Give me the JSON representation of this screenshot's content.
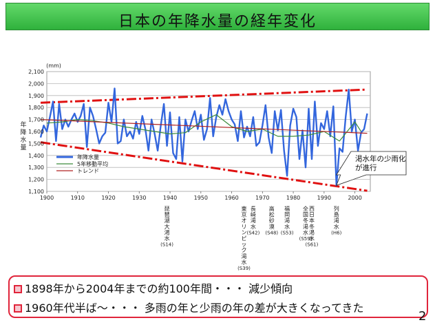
{
  "title": "日本の年降水量の経年変化",
  "notes": [
    "1898年から2004年までの約100年間・・・ 減少傾向",
    "1960年代半ば～・・・ 多雨の年と少雨の年の差が大きくなってきた"
  ],
  "page_number": "2",
  "colors": {
    "annual": "#3366dd",
    "moving_avg": "#3a8a3a",
    "trend": "#b02020",
    "envelope": "#e01010",
    "note_border": "#e0243a"
  },
  "chart_data": {
    "type": "line",
    "ylabel": "年降水量",
    "yunit": "(mm)",
    "xlim": [
      1900,
      2005
    ],
    "ylim": [
      1100,
      2100
    ],
    "yticks": [
      "1,100",
      "1,200",
      "1,300",
      "1,400",
      "1,500",
      "1,600",
      "1,700",
      "1,800",
      "1,900",
      "2,000",
      "2,100"
    ],
    "xticks": [
      "1900",
      "1910",
      "1920",
      "1930",
      "1940",
      "1950",
      "1960",
      "1970",
      "1980",
      "1990",
      "2000"
    ],
    "legend": [
      "年降水量",
      "5年移動平均",
      "トレンド"
    ],
    "series": [
      {
        "name": "年降水量",
        "x": [
          1898,
          1899,
          1900,
          1901,
          1902,
          1903,
          1904,
          1905,
          1906,
          1907,
          1908,
          1909,
          1910,
          1911,
          1912,
          1913,
          1914,
          1915,
          1916,
          1917,
          1918,
          1919,
          1920,
          1921,
          1922,
          1923,
          1924,
          1925,
          1926,
          1927,
          1928,
          1929,
          1930,
          1931,
          1932,
          1933,
          1934,
          1935,
          1936,
          1937,
          1938,
          1939,
          1940,
          1941,
          1942,
          1943,
          1944,
          1945,
          1946,
          1947,
          1948,
          1949,
          1950,
          1951,
          1952,
          1953,
          1954,
          1955,
          1956,
          1957,
          1958,
          1959,
          1960,
          1961,
          1962,
          1963,
          1964,
          1965,
          1966,
          1967,
          1968,
          1969,
          1970,
          1971,
          1972,
          1973,
          1974,
          1975,
          1976,
          1977,
          1978,
          1979,
          1980,
          1981,
          1982,
          1983,
          1984,
          1985,
          1986,
          1987,
          1988,
          1989,
          1990,
          1991,
          1992,
          1993,
          1994,
          1995,
          1996,
          1997,
          1998,
          1999,
          2000,
          2001,
          2002,
          2003,
          2004
        ],
        "values": [
          1550,
          1650,
          1600,
          1720,
          1850,
          1520,
          1830,
          1620,
          1700,
          1640,
          1700,
          1750,
          1680,
          1730,
          1830,
          1470,
          1800,
          1730,
          1620,
          1500,
          1560,
          1590,
          1840,
          1680,
          1960,
          1500,
          1520,
          1700,
          1560,
          1600,
          1540,
          1680,
          1580,
          1730,
          1620,
          1440,
          1700,
          1580,
          1440,
          1650,
          1830,
          1480,
          1760,
          1420,
          1370,
          1720,
          1350,
          1700,
          1600,
          1690,
          1770,
          1620,
          1740,
          1530,
          1620,
          1880,
          1560,
          1720,
          1820,
          1740,
          1870,
          1770,
          1700,
          1660,
          1520,
          1770,
          1550,
          1640,
          1560,
          1720,
          1480,
          1510,
          1650,
          1820,
          1550,
          1420,
          1770,
          1610,
          1780,
          1440,
          1230,
          1650,
          1790,
          1720,
          1370,
          1610,
          1300,
          1790,
          1370,
          1850,
          1480,
          1670,
          1620,
          1770,
          1560,
          1810,
          1150,
          1460,
          1430,
          1720,
          1950,
          1600,
          1700,
          1440,
          1590,
          1620,
          1750
        ]
      },
      {
        "name": "5年移動平均",
        "x": [
          1900,
          1905,
          1910,
          1915,
          1920,
          1925,
          1930,
          1935,
          1940,
          1945,
          1950,
          1955,
          1960,
          1965,
          1970,
          1975,
          1980,
          1985,
          1990,
          1995,
          2000,
          2002
        ],
        "values": [
          1670,
          1680,
          1700,
          1690,
          1670,
          1640,
          1620,
          1600,
          1580,
          1590,
          1680,
          1740,
          1640,
          1600,
          1620,
          1560,
          1560,
          1570,
          1600,
          1520,
          1680,
          1600
        ]
      },
      {
        "name": "トレンド",
        "x": [
          1898,
          2004
        ],
        "values": [
          1700,
          1585
        ]
      }
    ],
    "upper_envelope": {
      "x": [
        1898,
        2004
      ],
      "values": [
        1840,
        1950
      ]
    },
    "lower_envelope": {
      "x": [
        1898,
        2004
      ],
      "values": [
        1510,
        1105
      ]
    },
    "annotations": [
      {
        "text": [
          "渇水年の少雨化",
          "が進行"
        ],
        "anchor_year": 1994,
        "anchor_value": 1150
      }
    ],
    "event_labels": [
      {
        "year": 1939,
        "lines": [
          "琵",
          "琶",
          "湖",
          "大",
          "渇",
          "水",
          "(S14)"
        ]
      },
      {
        "year": 1964,
        "lines": [
          "東",
          "京",
          "オ",
          "リ",
          "ン",
          "ピ",
          "ッ",
          "ク",
          "渇",
          "水",
          "(S39)"
        ]
      },
      {
        "year": 1967,
        "lines": [
          "長",
          "崎",
          "渇",
          "水",
          "(S42)"
        ]
      },
      {
        "year": 1973,
        "lines": [
          "高",
          "松",
          "砂",
          "漠",
          "(S48)"
        ]
      },
      {
        "year": 1978,
        "lines": [
          "福",
          "岡",
          "渇",
          "水",
          "(S53)"
        ]
      },
      {
        "year": 1984,
        "lines": [
          "全",
          "国",
          "冬",
          "渇",
          "水",
          "(S59)"
        ]
      },
      {
        "year": 1986,
        "lines": [
          "西",
          "日",
          "本",
          "冬",
          "渇",
          "水",
          "(S61)"
        ]
      },
      {
        "year": 1994,
        "lines": [
          "列",
          "島",
          "渇",
          "水",
          "(H6)"
        ]
      }
    ]
  }
}
